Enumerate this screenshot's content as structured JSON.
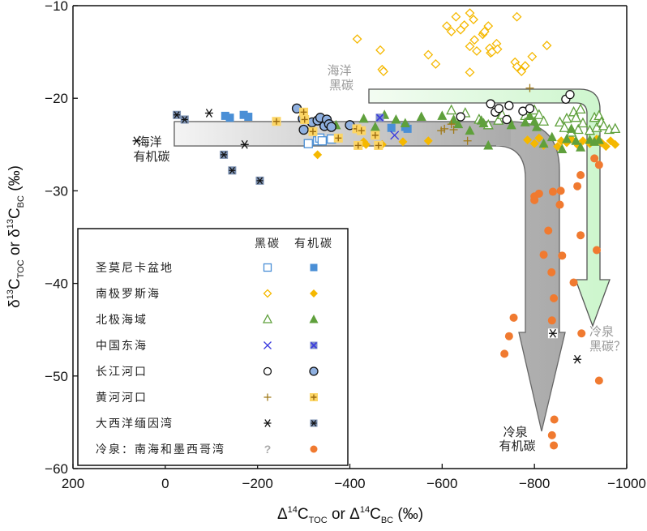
{
  "chart_data": {
    "type": "scatter",
    "title": "",
    "xlabel": "Δ14C_TOC or Δ14C_BC (‰)",
    "ylabel": "δ13C_TOC or δ13C_BC (‰)",
    "xlim": [
      200,
      -1000
    ],
    "ylim": [
      -60,
      -10
    ],
    "x_ticks": [
      "200",
      "0",
      "-200",
      "-400",
      "-600",
      "-800",
      "-1000"
    ],
    "y_ticks": [
      "-10",
      "-20",
      "-30",
      "-40",
      "-50",
      "-60"
    ],
    "grid": false,
    "legend": {
      "placement": "bottom-left",
      "col_headers": [
        "黑碳",
        "有机碳"
      ],
      "rows": [
        {
          "label": "圣莫尼卡盆地",
          "bc_marker": "open-square",
          "oc_marker": "filled-square",
          "color": "#4a8fd6"
        },
        {
          "label": "南极罗斯海",
          "bc_marker": "open-diamond",
          "oc_marker": "filled-diamond",
          "color": "#f5b800"
        },
        {
          "label": "北极海域",
          "bc_marker": "open-triangle",
          "oc_marker": "filled-triangle",
          "color": "#5fa03c"
        },
        {
          "label": "中国东海",
          "bc_marker": "x",
          "oc_marker": "x-box",
          "color": "#3a3adf"
        },
        {
          "label": "长江河口",
          "bc_marker": "open-circle",
          "oc_marker": "filled-circle",
          "color": "#8fb0e0"
        },
        {
          "label": "黄河河口",
          "bc_marker": "plus",
          "oc_marker": "plus-box",
          "color": "#a07a1a"
        },
        {
          "label": "大西洋缅因湾",
          "bc_marker": "asterisk",
          "oc_marker": "asterisk-box",
          "color": "#7a8fb0"
        },
        {
          "label": "冷泉：南海和墨西哥湾",
          "bc_marker": "question",
          "oc_marker": "filled-circle",
          "color": "#f07a30"
        }
      ]
    },
    "annotations": [
      {
        "text": "海洋\n有机碳",
        "color": "#222222"
      },
      {
        "text": "海洋\n黑碳",
        "color": "#999999"
      },
      {
        "text": "冷泉\n黑碳？",
        "color": "#999999"
      },
      {
        "text": "冷泉\n有机碳",
        "color": "#222222"
      }
    ],
    "series": [
      {
        "name": "圣莫尼卡盆地-黑碳",
        "marker": "open-square",
        "color": "#4a8fd6",
        "points": [
          [
            -310,
            -24.9
          ],
          [
            -330,
            -24.6
          ],
          [
            -335,
            -24.3
          ],
          [
            -360,
            -24.4
          ],
          [
            -340,
            -24.6
          ]
        ]
      },
      {
        "name": "圣莫尼卡盆地-有机碳",
        "marker": "filled-square",
        "color": "#4a8fd6",
        "points": [
          [
            -130,
            -21.9
          ],
          [
            -140,
            -22.1
          ],
          [
            -170,
            -21.8
          ],
          [
            -180,
            -22.0
          ],
          [
            -490,
            -23.2
          ],
          [
            -520,
            -23.1
          ],
          [
            -525,
            -23.3
          ]
        ]
      },
      {
        "name": "南极罗斯海-黑碳",
        "marker": "open-diamond",
        "color": "#f5b800",
        "points": [
          [
            -416,
            -13.6
          ],
          [
            -466,
            -14.8
          ],
          [
            -470,
            -16.9
          ],
          [
            -473,
            -17.1
          ],
          [
            -570,
            -15.3
          ],
          [
            -586,
            -16.3
          ],
          [
            -610,
            -12.2
          ],
          [
            -620,
            -12.8
          ],
          [
            -630,
            -11.2
          ],
          [
            -640,
            -12.6
          ],
          [
            -648,
            -12.1
          ],
          [
            -660,
            -10.8
          ],
          [
            -660,
            -14.4
          ],
          [
            -668,
            -11.5
          ],
          [
            -670,
            -13.7
          ],
          [
            -675,
            -14.9
          ],
          [
            -688,
            -13.1
          ],
          [
            -690,
            -12.9
          ],
          [
            -692,
            -12.8
          ],
          [
            -700,
            -12.2
          ],
          [
            -703,
            -14.6
          ],
          [
            -705,
            -15.1
          ],
          [
            -708,
            -15.0
          ],
          [
            -718,
            -14.1
          ],
          [
            -720,
            -14.7
          ],
          [
            -660,
            -17.2
          ],
          [
            -758,
            -16.1
          ],
          [
            -762,
            -16.6
          ],
          [
            -772,
            -17.1
          ],
          [
            -780,
            -16.5
          ],
          [
            -795,
            -15.5
          ],
          [
            -827,
            -14.3
          ],
          [
            -762,
            -11.2
          ]
        ]
      },
      {
        "name": "南极罗斯海-有机碳",
        "marker": "filled-diamond",
        "color": "#f5b800",
        "points": [
          [
            -330,
            -26.1
          ],
          [
            -430,
            -24.7
          ],
          [
            -435,
            -25.0
          ],
          [
            -470,
            -25.0
          ],
          [
            -515,
            -24.7
          ],
          [
            -570,
            -24.6
          ],
          [
            -785,
            -24.5
          ],
          [
            -800,
            -24.9
          ],
          [
            -810,
            -24.3
          ],
          [
            -820,
            -25.1
          ],
          [
            -850,
            -25.2
          ],
          [
            -858,
            -24.6
          ],
          [
            -870,
            -24.8
          ],
          [
            -880,
            -24.4
          ],
          [
            -895,
            -25.1
          ],
          [
            -905,
            -24.6
          ],
          [
            -920,
            -24.9
          ],
          [
            -935,
            -24.4
          ],
          [
            -945,
            -24.8
          ],
          [
            -955,
            -25.2
          ],
          [
            -965,
            -24.6
          ],
          [
            -975,
            -25.0
          ]
        ]
      },
      {
        "name": "北极海域-黑碳",
        "marker": "open-triangle",
        "color": "#5fa03c",
        "points": [
          [
            -620,
            -21.3
          ],
          [
            -650,
            -21.6
          ],
          [
            -680,
            -22.3
          ],
          [
            -700,
            -22.9
          ],
          [
            -722,
            -22.4
          ],
          [
            -730,
            -21.8
          ],
          [
            -780,
            -21.9
          ],
          [
            -800,
            -21.3
          ],
          [
            -810,
            -21.8
          ],
          [
            -820,
            -22.5
          ],
          [
            -855,
            -22.6
          ],
          [
            -865,
            -23.2
          ],
          [
            -870,
            -22.2
          ],
          [
            -880,
            -23.7
          ],
          [
            -885,
            -21.5
          ],
          [
            -890,
            -22.1
          ],
          [
            -895,
            -23.4
          ],
          [
            -900,
            -21.2
          ],
          [
            -905,
            -22.7
          ],
          [
            -920,
            -23.5
          ],
          [
            -930,
            -22.1
          ],
          [
            -935,
            -23.2
          ],
          [
            -940,
            -21.9
          ],
          [
            -945,
            -22.6
          ],
          [
            -950,
            -23.0
          ],
          [
            -962,
            -23.4
          ],
          [
            -975,
            -23.3
          ]
        ]
      },
      {
        "name": "北极海域-有机碳",
        "marker": "filled-triangle",
        "color": "#5fa03c",
        "points": [
          [
            -370,
            -22.9
          ],
          [
            -430,
            -22.2
          ],
          [
            -455,
            -23.1
          ],
          [
            -475,
            -21.8
          ],
          [
            -500,
            -22.3
          ],
          [
            -520,
            -22.7
          ],
          [
            -555,
            -22.0
          ],
          [
            -600,
            -21.9
          ],
          [
            -625,
            -22.3
          ],
          [
            -635,
            -22.8
          ],
          [
            -660,
            -23.5
          ],
          [
            -685,
            -22.4
          ],
          [
            -690,
            -22.7
          ],
          [
            -700,
            -25.1
          ],
          [
            -745,
            -22.3
          ],
          [
            -750,
            -22.9
          ],
          [
            -780,
            -22.6
          ],
          [
            -790,
            -21.9
          ],
          [
            -800,
            -22.5
          ],
          [
            -805,
            -23.1
          ],
          [
            -820,
            -24.9
          ],
          [
            -838,
            -24.2
          ],
          [
            -860,
            -25.5
          ],
          [
            -870,
            -24.4
          ],
          [
            -880,
            -23.3
          ],
          [
            -890,
            -24.6
          ],
          [
            -900,
            -25.3
          ],
          [
            -920,
            -24.5
          ],
          [
            -930,
            -24.7
          ],
          [
            -940,
            -24.5
          ]
        ]
      },
      {
        "name": "中国东海-黑碳",
        "marker": "x",
        "color": "#3a3adf",
        "points": [
          [
            -497,
            -24.0
          ]
        ]
      },
      {
        "name": "中国东海-有机碳",
        "marker": "x-box",
        "color": "#3a3adf",
        "points": [
          [
            -465,
            -22.1
          ]
        ]
      },
      {
        "name": "长江河口-黑碳",
        "marker": "open-circle",
        "color": "#111111",
        "points": [
          [
            -640,
            -22.0
          ],
          [
            -705,
            -20.6
          ],
          [
            -715,
            -21.5
          ],
          [
            -723,
            -21.1
          ],
          [
            -740,
            -22.3
          ],
          [
            -745,
            -20.8
          ],
          [
            -775,
            -21.4
          ],
          [
            -790,
            -21.1
          ],
          [
            -868,
            -20.1
          ],
          [
            -877,
            -19.6
          ]
        ]
      },
      {
        "name": "长江河口-有机碳",
        "marker": "filled-circle",
        "color": "#8fb0e0",
        "points": [
          [
            -285,
            -21.1
          ],
          [
            -298,
            -22.2
          ],
          [
            -300,
            -23.4
          ],
          [
            -318,
            -22.6
          ],
          [
            -330,
            -22.4
          ],
          [
            -336,
            -22.1
          ],
          [
            -345,
            -23.0
          ],
          [
            -350,
            -22.3
          ],
          [
            -355,
            -22.8
          ],
          [
            -360,
            -23.1
          ],
          [
            -400,
            -22.9
          ]
        ]
      },
      {
        "name": "黄河河口-黑碳",
        "marker": "plus",
        "color": "#a07a1a",
        "points": [
          [
            -598,
            -23.5
          ],
          [
            -605,
            -23.3
          ],
          [
            -620,
            -22.8
          ],
          [
            -625,
            -23.4
          ],
          [
            -655,
            -24.6
          ],
          [
            -790,
            -18.9
          ]
        ]
      },
      {
        "name": "黄河河口-有机碳",
        "marker": "plus-box",
        "color": "#f5b800",
        "points": [
          [
            -241,
            -22.5
          ],
          [
            -300,
            -21.5
          ],
          [
            -302,
            -22.3
          ],
          [
            -320,
            -23.6
          ],
          [
            -375,
            -24.3
          ],
          [
            -415,
            -23.3
          ],
          [
            -418,
            -25.1
          ],
          [
            -425,
            -23.5
          ],
          [
            -455,
            -24.0
          ],
          [
            -462,
            -25.1
          ]
        ]
      },
      {
        "name": "大西洋缅因湾-黑碳",
        "marker": "asterisk",
        "color": "#111111",
        "points": [
          [
            -95,
            -21.6
          ],
          [
            62,
            -24.6
          ],
          [
            -172,
            -25.0
          ],
          [
            -840,
            -45.4
          ],
          [
            -893,
            -48.2
          ]
        ]
      },
      {
        "name": "大西洋缅因湾-有机碳",
        "marker": "asterisk-box",
        "color": "#7a8fb0",
        "points": [
          [
            -25,
            -21.8
          ],
          [
            -42,
            -22.3
          ],
          [
            -127,
            -26.1
          ],
          [
            -145,
            -27.8
          ],
          [
            -205,
            -28.9
          ]
        ]
      },
      {
        "name": "冷泉-有机碳",
        "marker": "filled-circle",
        "color": "#f07a30",
        "points": [
          [
            -930,
            -26.5
          ],
          [
            -940,
            -27.2
          ],
          [
            -900,
            -28.3
          ],
          [
            -893,
            -29.5
          ],
          [
            -857,
            -30.0
          ],
          [
            -855,
            -31.5
          ],
          [
            -840,
            -30.1
          ],
          [
            -810,
            -30.3
          ],
          [
            -800,
            -31.0
          ],
          [
            -800,
            -30.6
          ],
          [
            -830,
            -34.3
          ],
          [
            -935,
            -36.4
          ],
          [
            -900,
            -34.8
          ],
          [
            -860,
            -37.0
          ],
          [
            -837,
            -38.8
          ],
          [
            -820,
            -36.9
          ],
          [
            -885,
            -39.9
          ],
          [
            -842,
            -41.6
          ],
          [
            -838,
            -44.0
          ],
          [
            -902,
            -45.4
          ],
          [
            -755,
            -43.7
          ],
          [
            -745,
            -45.7
          ],
          [
            -735,
            -47.6
          ],
          [
            -940,
            -50.5
          ],
          [
            -843,
            -54.7
          ],
          [
            -838,
            -56.4
          ],
          [
            -842,
            -57.5
          ]
        ]
      }
    ]
  }
}
